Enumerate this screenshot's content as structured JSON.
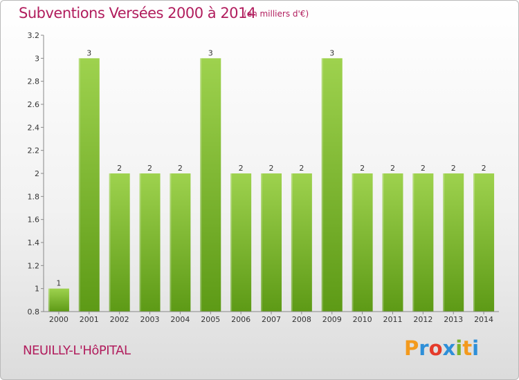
{
  "chart_data": {
    "type": "bar",
    "title": "Subventions Versées 2000 à 2014",
    "subtitle": "(en milliers d'€)",
    "categories": [
      "2000",
      "2001",
      "2002",
      "2003",
      "2004",
      "2005",
      "2006",
      "2007",
      "2008",
      "2009",
      "2010",
      "2011",
      "2012",
      "2013",
      "2014"
    ],
    "values": [
      1,
      3,
      2,
      2,
      2,
      3,
      2,
      2,
      2,
      3,
      2,
      2,
      2,
      2,
      2
    ],
    "data_labels": [
      "1",
      "3",
      "2",
      "2",
      "2",
      "3",
      "2",
      "2",
      "2",
      "3",
      "2",
      "2",
      "2",
      "2",
      "2"
    ],
    "ylim": [
      0.8,
      3.2
    ],
    "yticks": [
      0.8,
      1,
      1.2,
      1.4,
      1.6,
      1.8,
      2,
      2.2,
      2.4,
      2.6,
      2.8,
      3,
      3.2
    ],
    "ytick_labels": [
      "0.8",
      "1",
      "1.2",
      "1.4",
      "1.6",
      "1.8",
      "2",
      "2.2",
      "2.4",
      "2.6",
      "2.8",
      "3",
      "3.2"
    ],
    "grid": false,
    "xlabel": "",
    "ylabel": "",
    "colors": {
      "bar_light": "#9ed24e",
      "bar_dark": "#5d9a16",
      "title": "#b11d5d"
    }
  },
  "footer": {
    "commune": "NEUILLY-L'HôPITAL",
    "logo_letters": [
      "P",
      "r",
      "o",
      "x",
      "i",
      "t",
      "i"
    ]
  }
}
